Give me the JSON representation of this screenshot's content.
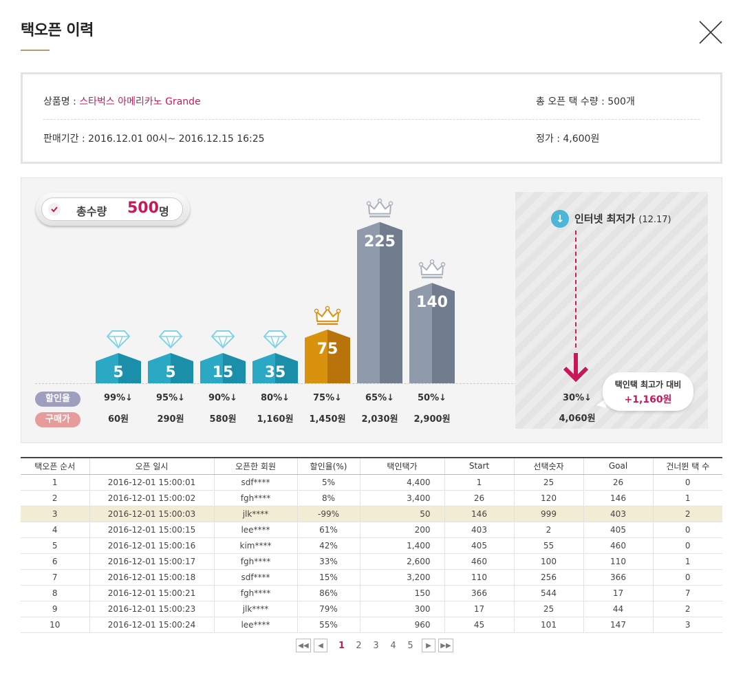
{
  "title": "택오픈 이력",
  "info": {
    "product_label": "상품명 : ",
    "product_name": "스타벅스 아메리카노 Grande",
    "total_tags": "총 오픈 택 수량 : 500개",
    "period": "판매기간  : 2016.12.01 00시~ 2016.12.15 16:25",
    "list_price": "정가 : 4,600원"
  },
  "summary": {
    "label": "총수량",
    "value": "500",
    "unit": "명"
  },
  "row_labels": {
    "rate": "할인율",
    "price": "구매가"
  },
  "colors": {
    "accent": "#c8185a",
    "teal": "#2ba8c4",
    "gold": "#d9920e",
    "silver": "#8f9bab",
    "diamond": "#7fd3e6"
  },
  "chart_data": {
    "type": "bar",
    "categories": [
      "99%↓",
      "95%↓",
      "90%↓",
      "80%↓",
      "75%↓",
      "65%↓",
      "50%↓"
    ],
    "prices": [
      "60원",
      "290원",
      "580원",
      "1,160원",
      "1,450원",
      "2,030원",
      "2,900원"
    ],
    "values": [
      5,
      5,
      15,
      35,
      75,
      225,
      140
    ],
    "tiers": [
      "diamond",
      "diamond",
      "diamond",
      "diamond",
      "gold-crown",
      "silver-crown",
      "silver-crown"
    ],
    "title": "",
    "xlabel": "",
    "ylabel": "",
    "ylim": [
      0,
      240
    ]
  },
  "internet": {
    "title": "인터넷 최저가",
    "date": "(12.17)",
    "rate": "30%↓",
    "price": "4,060원",
    "bubble_label": "택인택 최고가 대비",
    "bubble_value": "+1,160원"
  },
  "table": {
    "headers": [
      "택오픈 순서",
      "오픈 일시",
      "오픈한 회원",
      "할인율(%)",
      "택인택가",
      "Start",
      "선택숫자",
      "Goal",
      "건너뛴 택 수"
    ],
    "rows": [
      [
        "1",
        "2016-12-01  15:00:01",
        "sdf****",
        "5%",
        "4,400",
        "1",
        "25",
        "26",
        "0"
      ],
      [
        "2",
        "2016-12-01  15:00:02",
        "fgh****",
        "8%",
        "3,400",
        "26",
        "120",
        "146",
        "1"
      ],
      [
        "3",
        "2016-12-01  15:00:03",
        "jlk****",
        "-99%",
        "50",
        "146",
        "999",
        "403",
        "2"
      ],
      [
        "4",
        "2016-12-01  15:00:15",
        "lee****",
        "61%",
        "200",
        "403",
        "2",
        "405",
        "0"
      ],
      [
        "5",
        "2016-12-01  15:00:16",
        "kim****",
        "42%",
        "1,400",
        "405",
        "55",
        "460",
        "0"
      ],
      [
        "6",
        "2016-12-01  15:00:17",
        "fgh****",
        "33%",
        "2,600",
        "460",
        "100",
        "110",
        "1"
      ],
      [
        "7",
        "2016-12-01  15:00:18",
        "sdf****",
        "15%",
        "3,200",
        "110",
        "256",
        "366",
        "0"
      ],
      [
        "8",
        "2016-12-01  15:00:21",
        "fgh****",
        "86%",
        "150",
        "366",
        "544",
        "17",
        "7"
      ],
      [
        "9",
        "2016-12-01  15:00:23",
        "jlk****",
        "79%",
        "300",
        "17",
        "25",
        "44",
        "2"
      ],
      [
        "10",
        "2016-12-01  15:00:24",
        "lee****",
        "55%",
        "960",
        "45",
        "101",
        "147",
        "3"
      ]
    ],
    "highlight_row": 2
  },
  "pagination": {
    "pages": [
      "1",
      "2",
      "3",
      "4",
      "5"
    ],
    "current": "1"
  }
}
